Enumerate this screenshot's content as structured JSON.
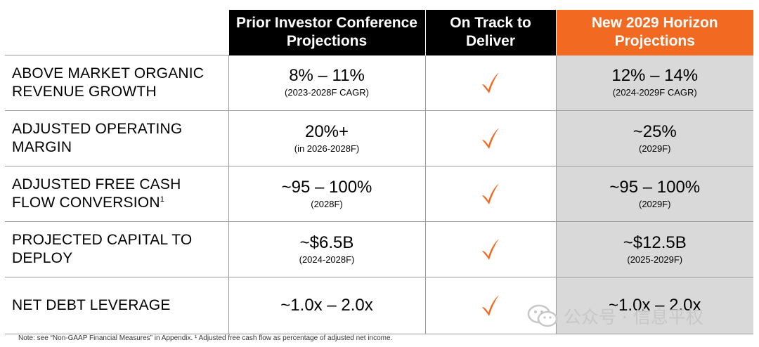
{
  "header": {
    "col_prior": "Prior Investor Conference Projections",
    "col_ontrack": "On Track to Deliver",
    "col_new": "New 2029 Horizon Projections"
  },
  "rows": [
    {
      "metric": "ABOVE MARKET ORGANIC REVENUE GROWTH",
      "sup": "",
      "prior_value": "8% – 11%",
      "prior_note": "(2023-2028F CAGR)",
      "new_value": "12% – 14%",
      "new_note": "(2024-2029F CAGR)"
    },
    {
      "metric": "ADJUSTED OPERATING MARGIN",
      "sup": "",
      "prior_value": "20%+",
      "prior_note": "(in 2026-2028F)",
      "new_value": "~25%",
      "new_note": "(2029F)"
    },
    {
      "metric": "ADJUSTED FREE CASH FLOW CONVERSION",
      "sup": "1",
      "prior_value": "~95 – 100%",
      "prior_note": "(2028F)",
      "new_value": "~95 – 100%",
      "new_note": "(2029F)"
    },
    {
      "metric": "PROJECTED CAPITAL TO DEPLOY",
      "sup": "",
      "prior_value": "~$6.5B",
      "prior_note": "(2024-2028F)",
      "new_value": "~$12.5B",
      "new_note": "(2025-2029F)"
    },
    {
      "metric": "NET DEBT LEVERAGE",
      "sup": "",
      "prior_value": "~1.0x – 2.0x",
      "prior_note": "",
      "new_value": "~1.0x – 2.0x",
      "new_note": ""
    }
  ],
  "icons": {
    "ontrack": "checkmark-icon",
    "watermark": "wechat-icon"
  },
  "colors": {
    "accent_orange": "#f26a21",
    "header_dark": "#000000",
    "shade": "#d9d9d9"
  },
  "footnote": "Note: see “Non-GAAP Financial Measures” in Appendix. ¹ Adjusted free cash flow as percentage of adjusted net income.",
  "watermark": "公众号 · 信息平权"
}
